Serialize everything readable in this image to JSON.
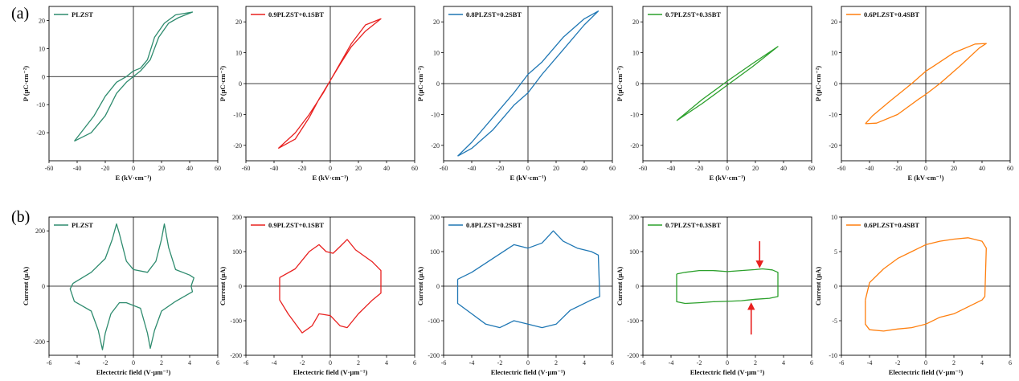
{
  "figure": {
    "row_labels": [
      "(a)",
      "(b)"
    ]
  },
  "colors": {
    "PLZST": "#2e8b6e",
    "0.9PLZST+0.1SBT": "#e8201f",
    "0.8PLZST+0.2SBT": "#1f77b4",
    "0.7PLZST+0.3SBT": "#2ca02c",
    "0.6PLZST+0.4SBT": "#ff7f0e",
    "arrow": "#e8201f"
  },
  "chart_data": [
    {
      "type": "line",
      "row": "a",
      "legend": "PLZST",
      "color": "#2e8b6e",
      "xlabel": "E (kV·cm⁻¹)",
      "ylabel": "P (μC·cm⁻²)",
      "xlim": [
        -60,
        60
      ],
      "ylim": [
        -30,
        25
      ],
      "xticks": [
        -60,
        -40,
        -20,
        0,
        20,
        40,
        60
      ],
      "yticks": [
        -20,
        -10,
        0,
        10,
        20
      ],
      "x": [
        -42,
        -30,
        -20,
        -12,
        -5,
        0,
        5,
        12,
        18,
        25,
        32,
        42,
        30,
        22,
        15,
        10,
        5,
        0,
        -5,
        -12,
        -20,
        -28,
        -42
      ],
      "y": [
        -23,
        -20,
        -14,
        -6,
        -2,
        0,
        2,
        6,
        14,
        19,
        21,
        23,
        22,
        19,
        14,
        6,
        3,
        2,
        0,
        -2,
        -7,
        -14,
        -23
      ]
    },
    {
      "type": "line",
      "row": "a",
      "legend": "0.9PLZST+0.1SBT",
      "color": "#e8201f",
      "xlabel": "E (kV·cm⁻¹)",
      "ylabel": "P (μC·cm⁻²)",
      "xlim": [
        -60,
        60
      ],
      "ylim": [
        -25,
        25
      ],
      "xticks": [
        -60,
        -40,
        -20,
        0,
        20,
        40,
        60
      ],
      "yticks": [
        -20,
        -10,
        0,
        10,
        20
      ],
      "x": [
        -37,
        -25,
        -15,
        -8,
        0,
        8,
        15,
        25,
        36,
        25,
        15,
        5,
        0,
        -5,
        -15,
        -25,
        -37
      ],
      "y": [
        -21,
        -18,
        -11,
        -5,
        1,
        7,
        12,
        17,
        21,
        19,
        13,
        5,
        1,
        -3,
        -10,
        -16,
        -21
      ]
    },
    {
      "type": "line",
      "row": "a",
      "legend": "0.8PLZST+0.2SBT",
      "color": "#1f77b4",
      "xlabel": "E (kV·cm⁻¹)",
      "ylabel": "P (μC·cm⁻²)",
      "xlim": [
        -60,
        60
      ],
      "ylim": [
        -25,
        25
      ],
      "xticks": [
        -60,
        -40,
        -20,
        0,
        20,
        40,
        60
      ],
      "yticks": [
        -20,
        -10,
        0,
        10,
        20
      ],
      "x": [
        -50,
        -40,
        -25,
        -10,
        0,
        10,
        25,
        40,
        50,
        40,
        25,
        10,
        0,
        -10,
        -25,
        -40,
        -50
      ],
      "y": [
        -23.5,
        -21,
        -15,
        -7,
        -3,
        3,
        11,
        19,
        23.5,
        21,
        15,
        7,
        3,
        -3,
        -11,
        -19,
        -23.5
      ]
    },
    {
      "type": "line",
      "row": "a",
      "legend": "0.7PLZST+0.3SBT",
      "color": "#2ca02c",
      "xlabel": "E (kV·cm⁻¹)",
      "ylabel": "P (μC·cm⁻²)",
      "xlim": [
        -60,
        60
      ],
      "ylim": [
        -25,
        25
      ],
      "xticks": [
        -60,
        -40,
        -20,
        0,
        20,
        40,
        60
      ],
      "yticks": [
        -20,
        -10,
        0,
        10,
        20
      ],
      "x": [
        -36,
        -18,
        0,
        18,
        36,
        18,
        0,
        -18,
        -36
      ],
      "y": [
        -12,
        -6.5,
        -0.5,
        5.5,
        12,
        6.5,
        0.8,
        -5.2,
        -12
      ]
    },
    {
      "type": "line",
      "row": "a",
      "legend": "0.6PLZST+0.4SBT",
      "color": "#ff7f0e",
      "xlabel": "E (kV·cm⁻¹)",
      "ylabel": "P (μC·cm⁻²)",
      "xlim": [
        -60,
        60
      ],
      "ylim": [
        -25,
        25
      ],
      "xticks": [
        -60,
        -40,
        -20,
        0,
        20,
        40,
        60
      ],
      "yticks": [
        -20,
        -10,
        0,
        10,
        20
      ],
      "x": [
        -43,
        -35,
        -20,
        -5,
        0,
        10,
        25,
        38,
        43,
        35,
        20,
        5,
        0,
        -10,
        -25,
        -38,
        -43
      ],
      "y": [
        -13,
        -12.8,
        -10,
        -5,
        -3.5,
        0,
        6,
        11.5,
        13,
        12.8,
        10,
        5.5,
        4,
        0,
        -5.5,
        -10.5,
        -13
      ]
    },
    {
      "type": "line",
      "row": "b",
      "legend": "PLZST",
      "color": "#2e8b6e",
      "xlabel": "Electectric field (V·μm⁻¹)",
      "ylabel": "Current (μA)",
      "xlim": [
        -6,
        6
      ],
      "ylim": [
        -250,
        250
      ],
      "xticks": [
        -6,
        -4,
        -2,
        0,
        2,
        4,
        6
      ],
      "yticks": [
        -200,
        0,
        200
      ],
      "x": [
        -4.3,
        -3,
        -2,
        -1.5,
        -1.2,
        -1,
        -0.5,
        0,
        1,
        1.6,
        2,
        2.2,
        2.5,
        3,
        4,
        4.3,
        4.1,
        4.2,
        3,
        2,
        1.5,
        1.2,
        1,
        0.5,
        -0.5,
        -1,
        -1.6,
        -2,
        -2.2,
        -2.5,
        -3,
        -4.2,
        -4.5,
        -4.3
      ],
      "y": [
        10,
        50,
        100,
        170,
        225,
        190,
        90,
        60,
        50,
        90,
        170,
        225,
        140,
        60,
        40,
        30,
        0,
        -20,
        -55,
        -90,
        -160,
        -225,
        -170,
        -80,
        -60,
        -60,
        -100,
        -170,
        -230,
        -160,
        -90,
        -55,
        -10,
        10
      ]
    },
    {
      "type": "line",
      "row": "b",
      "legend": "0.9PLZST+0.1SBT",
      "color": "#e8201f",
      "xlabel": "Electectric field (V·μm⁻¹)",
      "ylabel": "Current (μA)",
      "xlim": [
        -6,
        6
      ],
      "ylim": [
        -200,
        200
      ],
      "xticks": [
        -6,
        -4,
        -2,
        0,
        2,
        4,
        6
      ],
      "yticks": [
        -200,
        -100,
        0,
        100,
        200
      ],
      "x": [
        -3.6,
        -2.5,
        -1.5,
        -0.8,
        -0.3,
        0.2,
        0.7,
        1.2,
        1.8,
        3,
        3.6,
        3.6,
        3,
        2,
        1.2,
        0.7,
        0,
        -0.8,
        -1.3,
        -2,
        -3,
        -3.6,
        -3.6
      ],
      "y": [
        25,
        50,
        100,
        120,
        100,
        95,
        115,
        135,
        105,
        70,
        45,
        -20,
        -40,
        -80,
        -120,
        -115,
        -85,
        -80,
        -115,
        -135,
        -80,
        -40,
        25
      ]
    },
    {
      "type": "line",
      "row": "b",
      "legend": "0.8PLZST+0.2SBT",
      "color": "#1f77b4",
      "xlabel": "Electectric field (V·μm⁻¹)",
      "ylabel": "Current (μA)",
      "xlim": [
        -6,
        6
      ],
      "ylim": [
        -200,
        200
      ],
      "xticks": [
        -6,
        -4,
        -2,
        0,
        2,
        4,
        6
      ],
      "yticks": [
        -200,
        -100,
        0,
        100,
        200
      ],
      "x": [
        -5,
        -4,
        -2.5,
        -1,
        0,
        1,
        1.8,
        2.5,
        3.5,
        4.5,
        5,
        5.1,
        4.5,
        3,
        2,
        1,
        0,
        -1,
        -2,
        -3,
        -4,
        -5,
        -5
      ],
      "y": [
        20,
        40,
        80,
        120,
        110,
        125,
        160,
        130,
        110,
        100,
        90,
        -30,
        -40,
        -70,
        -110,
        -120,
        -110,
        -100,
        -120,
        -110,
        -80,
        -50,
        20
      ]
    },
    {
      "type": "line",
      "row": "b",
      "legend": "0.7PLZST+0.3SBT",
      "color": "#2ca02c",
      "xlabel": "Electectric field (V·μm⁻¹)",
      "ylabel": "Current (μA)",
      "xlim": [
        -6,
        6
      ],
      "ylim": [
        -200,
        200
      ],
      "xticks": [
        -6,
        -4,
        -2,
        0,
        2,
        4,
        6
      ],
      "yticks": [
        -200,
        -100,
        0,
        100,
        200
      ],
      "x": [
        -3.6,
        -3,
        -2,
        -1,
        0,
        1,
        2,
        2.5,
        3.2,
        3.6,
        3.6,
        3,
        2,
        1.5,
        1,
        0,
        -1,
        -2,
        -3,
        -3.6,
        -3.6
      ],
      "y": [
        35,
        40,
        45,
        45,
        42,
        45,
        48,
        50,
        47,
        40,
        -30,
        -35,
        -38,
        -40,
        -42,
        -44,
        -45,
        -48,
        -50,
        -45,
        35
      ]
    },
    {
      "type": "line",
      "row": "b",
      "legend": "0.6PLZST+0.4SBT",
      "color": "#ff7f0e",
      "xlabel": "Electectric field (V·μm⁻¹)",
      "ylabel": "Current (μA)",
      "xlim": [
        -6,
        6
      ],
      "ylim": [
        -10,
        10
      ],
      "xticks": [
        -6,
        -4,
        -2,
        0,
        2,
        4,
        6
      ],
      "yticks": [
        -10,
        -5,
        0,
        5,
        10
      ],
      "x": [
        -4.3,
        -4,
        -3,
        -2,
        -1,
        0,
        1,
        2,
        3,
        4,
        4.3,
        4.2,
        4,
        3,
        2,
        1,
        0,
        -1,
        -2,
        -3,
        -4,
        -4.3,
        -4.3
      ],
      "y": [
        -2,
        0.5,
        2.5,
        4,
        5,
        6,
        6.5,
        6.8,
        7,
        6.5,
        5.5,
        -1.5,
        -2,
        -3,
        -4,
        -4.5,
        -5.5,
        -6,
        -6.2,
        -6.5,
        -6.3,
        -5.5,
        -2
      ]
    }
  ]
}
